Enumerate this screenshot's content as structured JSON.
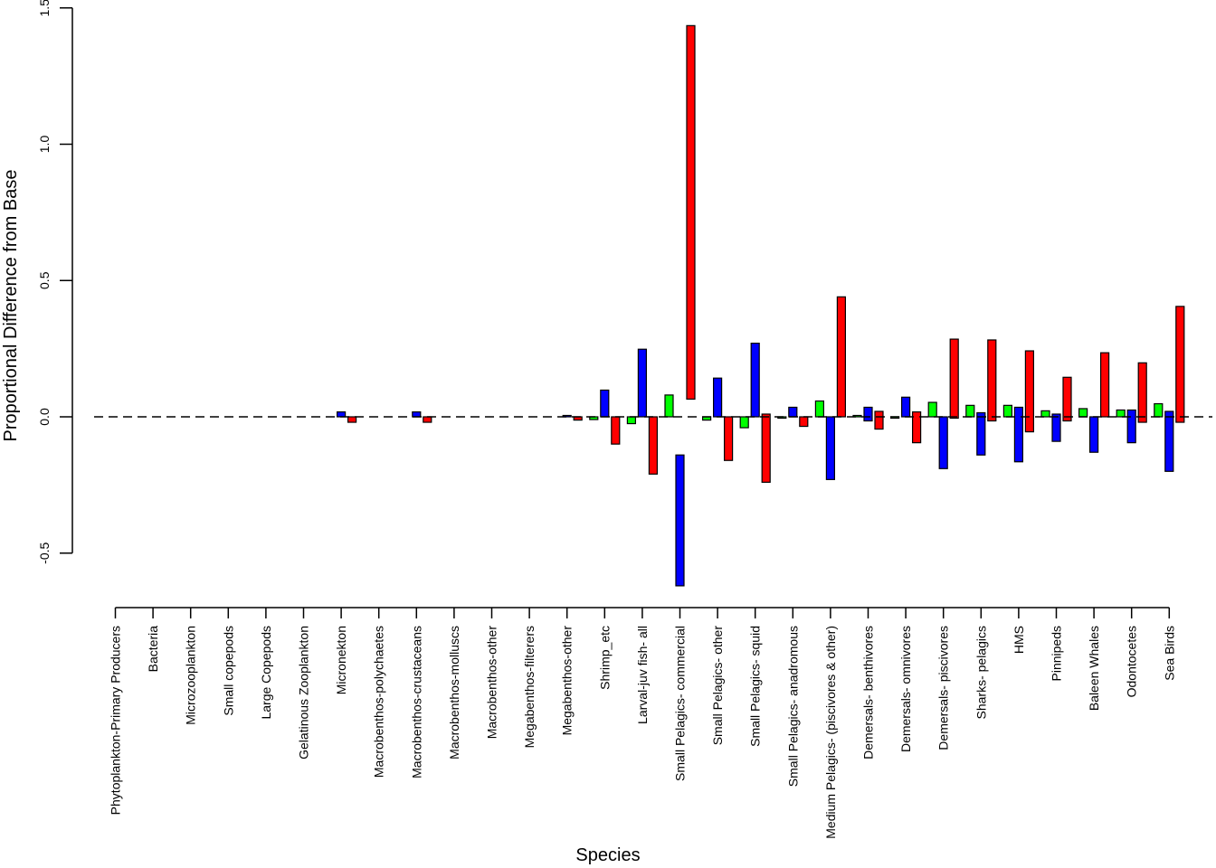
{
  "chart_data": {
    "type": "bar",
    "xlabel": "Species",
    "ylabel": "Proportional Difference from Base",
    "ylim": [
      -0.5,
      1.5
    ],
    "yticks": [
      "-0.5",
      "0.0",
      "0.5",
      "1.0",
      "1.5"
    ],
    "ytick_values": [
      -0.5,
      0.0,
      0.5,
      1.0,
      1.5
    ],
    "grid": false,
    "reference_line": 0,
    "categories": [
      "Phytoplankton-Primary Producers",
      "Bacteria",
      "Microzooplankton",
      "Small copepods",
      "Large Copepods",
      "Gelatinous Zooplankton",
      "Micronekton",
      "Macrobenthos-polychaetes",
      "Macrobenthos-crustaceans",
      "Macrobenthos-molluscs",
      "Macrobenthos-other",
      "Megabenthos-filterers",
      "Megabenthos-other",
      "Shrimp_etc",
      "Larval-juv fish- all",
      "Small Pelagics- commercial",
      "Small Pelagics- other",
      "Small Pelagics- squid",
      "Small Pelagics- anadromous",
      "Medium Pelagics- (piscivores & other)",
      "Demersals- benthivores",
      "Demersals- omnivores",
      "Demersals- piscivores",
      "Sharks- pelagics",
      "HMS",
      "Pinnipeds",
      "Baleen Whales",
      "Odontocetes",
      "Sea Birds"
    ],
    "series": [
      {
        "color": "#00ff00",
        "bars": [
          [
            0,
            0
          ],
          [
            0,
            0
          ],
          [
            0,
            0
          ],
          [
            0,
            0
          ],
          [
            0,
            0
          ],
          [
            0,
            0
          ],
          [
            0,
            0
          ],
          [
            0,
            0
          ],
          [
            0,
            0
          ],
          [
            0,
            0
          ],
          [
            0,
            0
          ],
          [
            0,
            0
          ],
          [
            0,
            0
          ],
          [
            -0.01,
            0
          ],
          [
            -0.025,
            0
          ],
          [
            0,
            0.08
          ],
          [
            -0.012,
            0
          ],
          [
            -0.04,
            0
          ],
          [
            -0.005,
            0
          ],
          [
            0,
            0.058
          ],
          [
            0,
            0.005
          ],
          [
            -0.005,
            0
          ],
          [
            0,
            0.053
          ],
          [
            0,
            0.042
          ],
          [
            0,
            0.042
          ],
          [
            0,
            0.022
          ],
          [
            0,
            0.03
          ],
          [
            0,
            0.025
          ],
          [
            0,
            0.048
          ]
        ]
      },
      {
        "color": "#0000ff",
        "bars": [
          [
            0,
            0
          ],
          [
            0,
            0
          ],
          [
            0,
            0
          ],
          [
            0,
            0
          ],
          [
            0,
            0
          ],
          [
            0,
            0
          ],
          [
            0,
            0.018
          ],
          [
            0,
            0
          ],
          [
            0,
            0.018
          ],
          [
            0,
            0
          ],
          [
            0,
            0
          ],
          [
            0,
            0
          ],
          [
            0,
            0.005
          ],
          [
            0,
            0.098
          ],
          [
            0,
            0.248
          ],
          [
            -0.62,
            -0.14
          ],
          [
            0,
            0.142
          ],
          [
            0,
            0.27
          ],
          [
            0,
            0.035
          ],
          [
            -0.23,
            0
          ],
          [
            -0.015,
            0.035
          ],
          [
            0,
            0.072
          ],
          [
            -0.19,
            0
          ],
          [
            -0.14,
            0.015
          ],
          [
            -0.165,
            0.035
          ],
          [
            -0.09,
            0.01
          ],
          [
            -0.13,
            0
          ],
          [
            -0.095,
            0.025
          ],
          [
            -0.2,
            0.02
          ]
        ]
      },
      {
        "color": "#ff0000",
        "bars": [
          [
            0,
            0
          ],
          [
            0,
            0
          ],
          [
            0,
            0
          ],
          [
            0,
            0
          ],
          [
            0,
            0
          ],
          [
            0,
            0
          ],
          [
            -0.02,
            0
          ],
          [
            0,
            0
          ],
          [
            -0.02,
            0
          ],
          [
            0,
            0
          ],
          [
            0,
            0
          ],
          [
            0,
            0
          ],
          [
            -0.012,
            0
          ],
          [
            -0.1,
            0
          ],
          [
            -0.21,
            0
          ],
          [
            0.065,
            1.435
          ],
          [
            -0.16,
            0
          ],
          [
            -0.24,
            0.01
          ],
          [
            -0.035,
            0
          ],
          [
            0,
            0.44
          ],
          [
            -0.045,
            0.02
          ],
          [
            -0.095,
            0.018
          ],
          [
            -0.005,
            0.285
          ],
          [
            -0.015,
            0.282
          ],
          [
            -0.055,
            0.242
          ],
          [
            -0.015,
            0.145
          ],
          [
            0,
            0.235
          ],
          [
            -0.02,
            0.198
          ],
          [
            -0.02,
            0.405
          ]
        ]
      }
    ]
  }
}
